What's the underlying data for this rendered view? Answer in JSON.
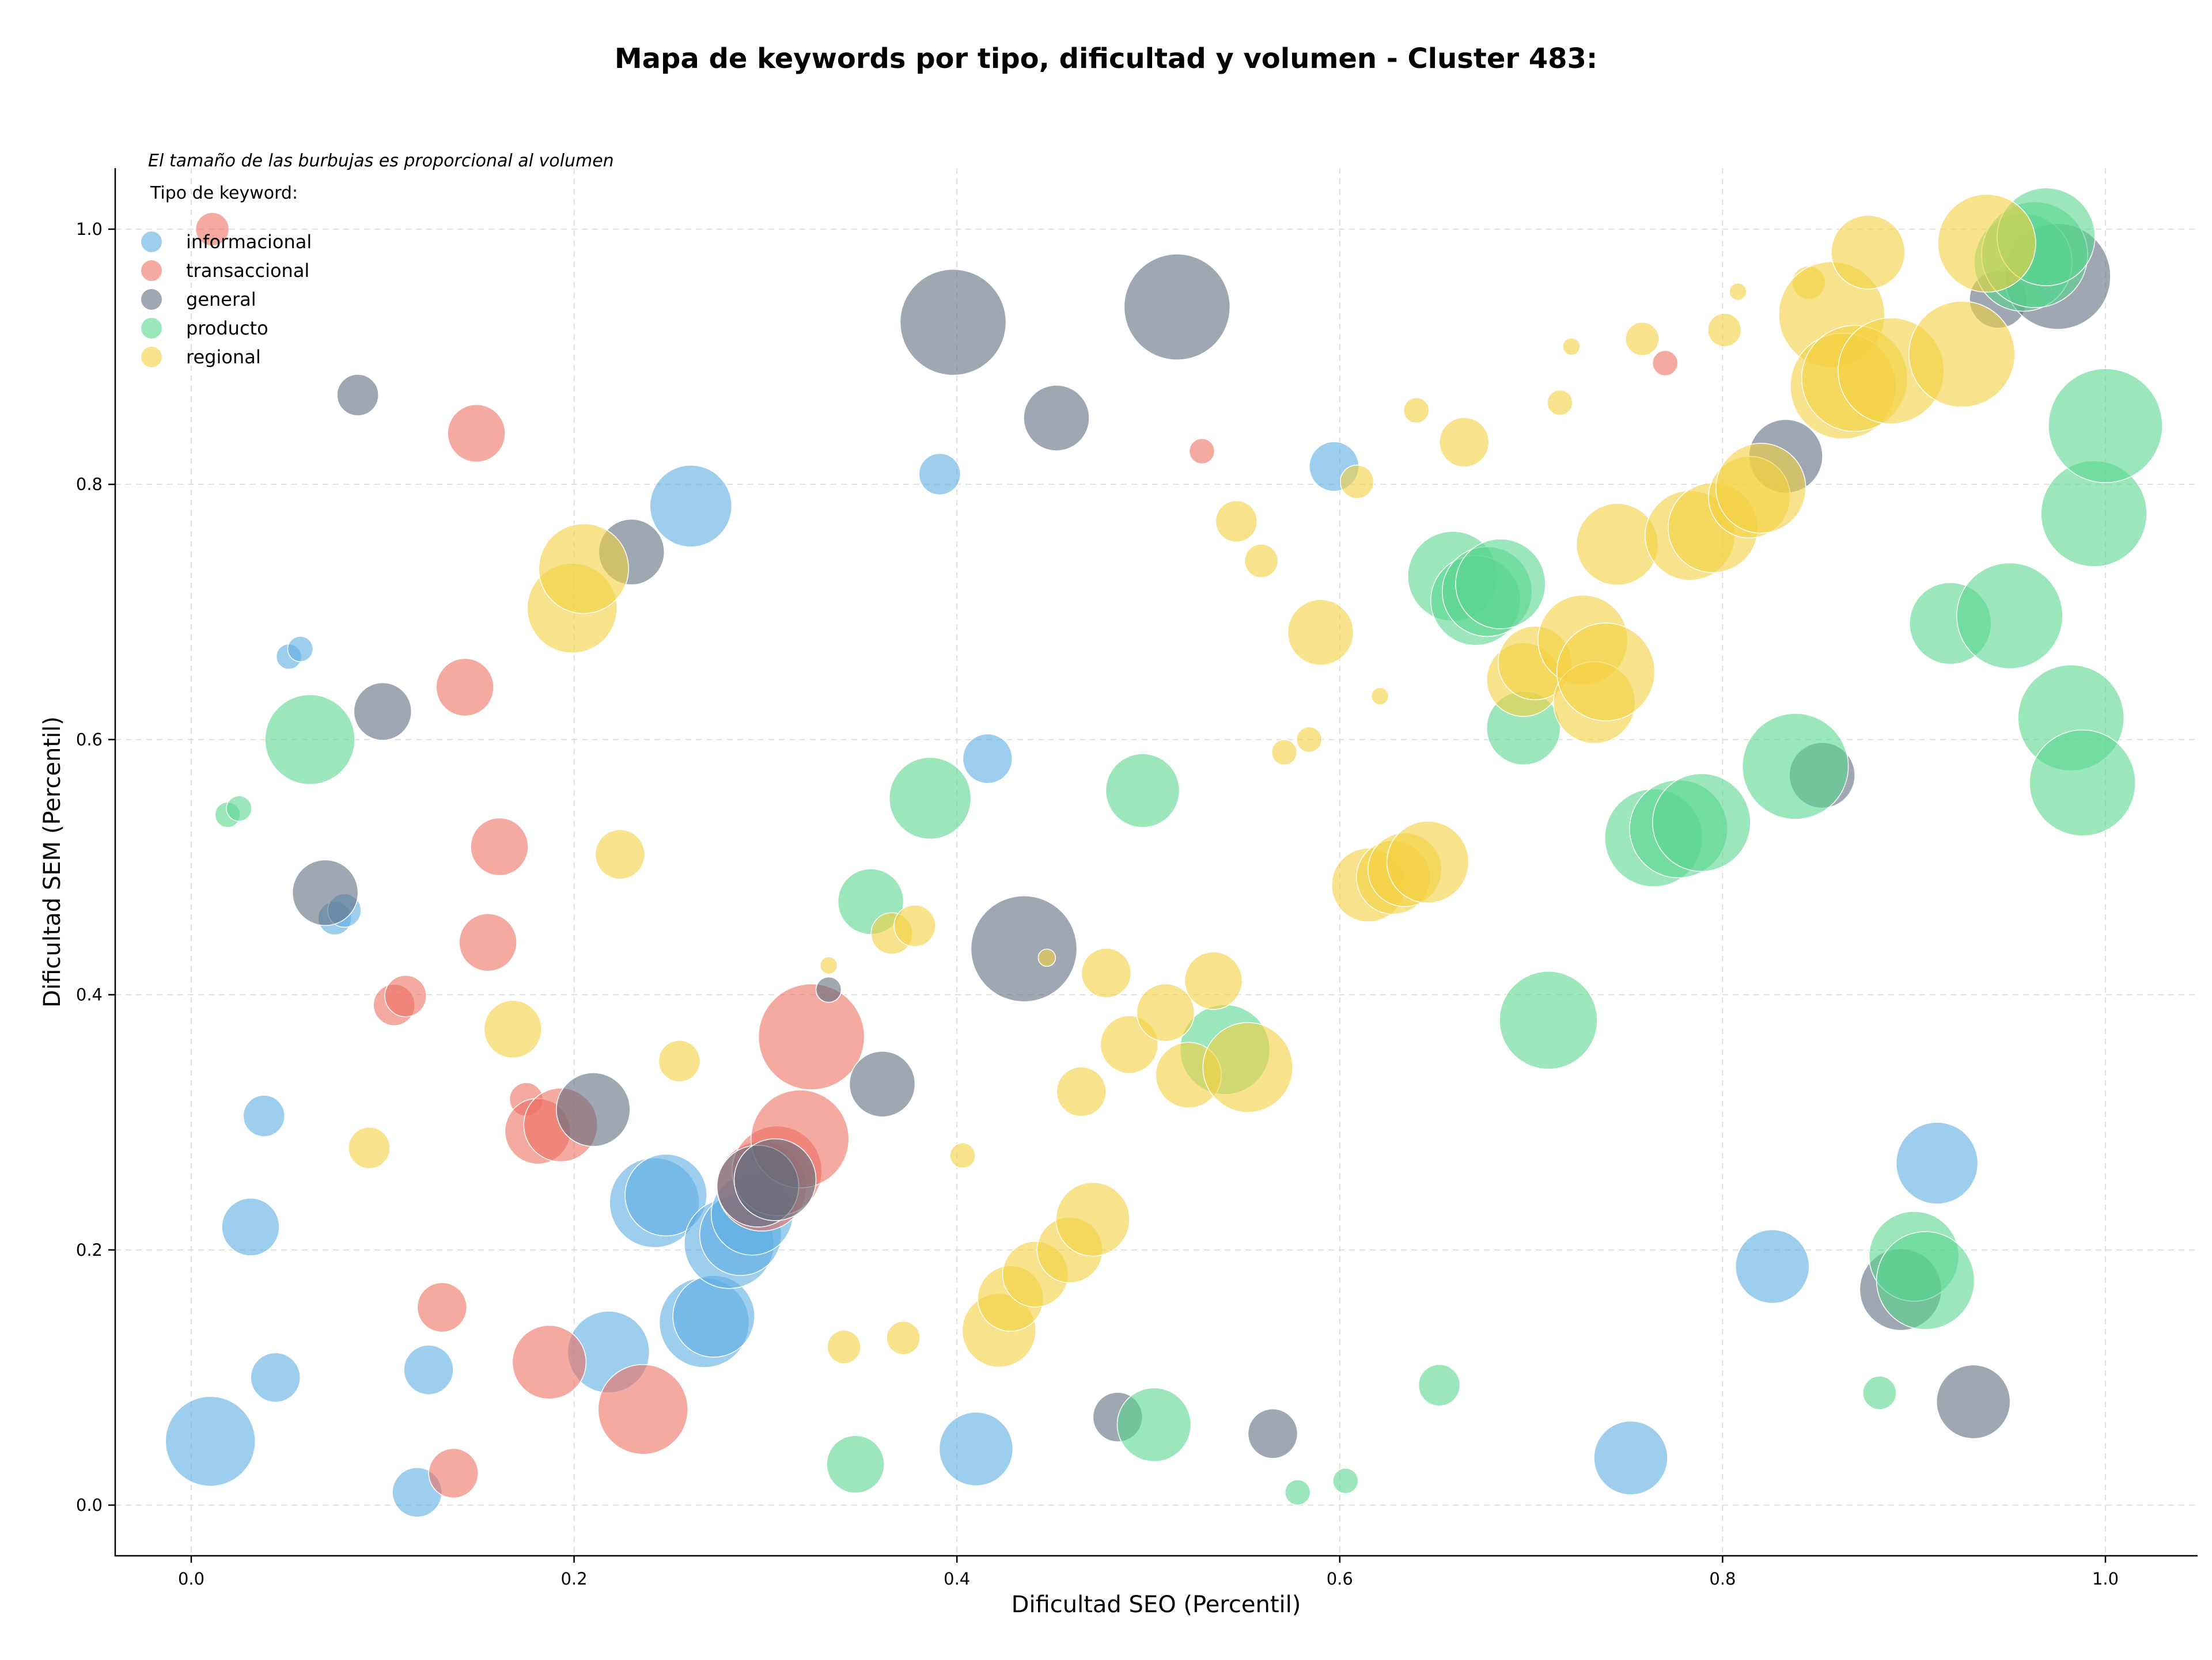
{
  "chart_data": {
    "type": "scatter",
    "title": "Mapa de keywords por tipo, dificultad y volumen - Cluster 483:",
    "xlabel": "Dificultad SEO (Percentil)",
    "ylabel": "Dificultad SEM (Percentil)",
    "xlim": [
      -0.04,
      1.05
    ],
    "ylim": [
      -0.04,
      1.05
    ],
    "xticks": [
      0.0,
      0.2,
      0.4,
      0.6,
      0.8,
      1.0
    ],
    "yticks": [
      0.0,
      0.2,
      0.4,
      0.6,
      0.8,
      1.0
    ],
    "xtick_labels": [
      "0.0",
      "0.2",
      "0.4",
      "0.6",
      "0.8",
      "1.0"
    ],
    "ytick_labels": [
      "0.0",
      "0.2",
      "0.4",
      "0.6",
      "0.8",
      "1.0"
    ],
    "grid": true,
    "annotation": "El tamaño de las burbujas es proporcional al volumen",
    "legend": {
      "title": "Tipo de keyword:",
      "placement": "top-left"
    },
    "series": [
      {
        "name": "informacional",
        "color": "#5dade2",
        "points": [
          [
            0.01,
            0.05,
            10
          ],
          [
            0.031,
            0.218,
            6
          ],
          [
            0.038,
            0.305,
            4
          ],
          [
            0.044,
            0.1,
            5
          ],
          [
            0.051,
            0.665,
            2
          ],
          [
            0.057,
            0.671,
            2
          ],
          [
            0.075,
            0.46,
            3
          ],
          [
            0.08,
            0.466,
            3
          ],
          [
            0.118,
            0.01,
            5
          ],
          [
            0.124,
            0.106,
            5
          ],
          [
            0.218,
            0.12,
            9
          ],
          [
            0.242,
            0.237,
            10
          ],
          [
            0.248,
            0.243,
            9
          ],
          [
            0.261,
            0.783,
            9
          ],
          [
            0.268,
            0.143,
            10
          ],
          [
            0.273,
            0.148,
            9
          ],
          [
            0.281,
            0.205,
            10
          ],
          [
            0.287,
            0.212,
            9
          ],
          [
            0.293,
            0.228,
            9
          ],
          [
            0.391,
            0.808,
            4
          ],
          [
            0.416,
            0.585,
            5
          ],
          [
            0.41,
            0.044,
            8
          ],
          [
            0.597,
            0.814,
            5
          ],
          [
            0.752,
            0.037,
            8
          ],
          [
            0.826,
            0.187,
            8
          ],
          [
            0.912,
            0.268,
            9
          ]
        ]
      },
      {
        "name": "transaccional",
        "color": "#ec7063",
        "points": [
          [
            0.011,
            1.0,
            3
          ],
          [
            0.106,
            0.392,
            4
          ],
          [
            0.112,
            0.399,
            4
          ],
          [
            0.131,
            0.155,
            5
          ],
          [
            0.137,
            0.025,
            5
          ],
          [
            0.143,
            0.641,
            6
          ],
          [
            0.149,
            0.84,
            6
          ],
          [
            0.155,
            0.441,
            6
          ],
          [
            0.161,
            0.516,
            6
          ],
          [
            0.175,
            0.318,
            3
          ],
          [
            0.181,
            0.293,
            7
          ],
          [
            0.193,
            0.298,
            8
          ],
          [
            0.187,
            0.112,
            8
          ],
          [
            0.236,
            0.075,
            10
          ],
          [
            0.298,
            0.25,
            10
          ],
          [
            0.306,
            0.262,
            10
          ],
          [
            0.318,
            0.287,
            11
          ],
          [
            0.324,
            0.367,
            12
          ],
          [
            0.528,
            0.826,
            2
          ],
          [
            0.77,
            0.895,
            2
          ]
        ]
      },
      {
        "name": "general",
        "color": "#5d6d7e",
        "points": [
          [
            0.087,
            0.87,
            4
          ],
          [
            0.07,
            0.48,
            7
          ],
          [
            0.1,
            0.622,
            6
          ],
          [
            0.21,
            0.31,
            8
          ],
          [
            0.23,
            0.747,
            7
          ],
          [
            0.296,
            0.25,
            9
          ],
          [
            0.305,
            0.255,
            9
          ],
          [
            0.333,
            0.404,
            2
          ],
          [
            0.361,
            0.33,
            7
          ],
          [
            0.398,
            0.927,
            12
          ],
          [
            0.435,
            0.436,
            12
          ],
          [
            0.452,
            0.852,
            7
          ],
          [
            0.484,
            0.069,
            5
          ],
          [
            0.515,
            0.939,
            12
          ],
          [
            0.565,
            0.056,
            5
          ],
          [
            0.833,
            0.822,
            8
          ],
          [
            0.852,
            0.572,
            7
          ],
          [
            0.893,
            0.169,
            9
          ],
          [
            0.931,
            0.081,
            8
          ],
          [
            0.944,
            0.945,
            6
          ],
          [
            0.975,
            0.963,
            12
          ]
        ]
      },
      {
        "name": "producto",
        "color": "#58d68d",
        "points": [
          [
            0.019,
            0.541,
            2
          ],
          [
            0.025,
            0.546,
            2
          ],
          [
            0.062,
            0.6,
            10
          ],
          [
            0.347,
            0.032,
            6
          ],
          [
            0.355,
            0.473,
            7
          ],
          [
            0.386,
            0.554,
            9
          ],
          [
            0.497,
            0.56,
            8
          ],
          [
            0.503,
            0.063,
            8
          ],
          [
            0.54,
            0.357,
            10
          ],
          [
            0.578,
            0.01,
            2
          ],
          [
            0.603,
            0.019,
            2
          ],
          [
            0.652,
            0.094,
            4
          ],
          [
            0.659,
            0.728,
            10
          ],
          [
            0.671,
            0.709,
            10
          ],
          [
            0.677,
            0.716,
            10
          ],
          [
            0.684,
            0.722,
            10
          ],
          [
            0.696,
            0.609,
            8
          ],
          [
            0.709,
            0.38,
            11
          ],
          [
            0.764,
            0.523,
            11
          ],
          [
            0.777,
            0.53,
            11
          ],
          [
            0.789,
            0.535,
            11
          ],
          [
            0.838,
            0.579,
            12
          ],
          [
            0.882,
            0.088,
            3
          ],
          [
            0.9,
            0.195,
            10
          ],
          [
            0.906,
            0.176,
            11
          ],
          [
            0.919,
            0.691,
            9
          ],
          [
            0.95,
            0.697,
            12
          ],
          [
            0.957,
            0.974,
            11
          ],
          [
            0.963,
            0.98,
            12
          ],
          [
            0.969,
            0.994,
            11
          ],
          [
            0.982,
            0.617,
            12
          ],
          [
            0.988,
            0.566,
            12
          ],
          [
            0.994,
            0.777,
            12
          ],
          [
            1.0,
            0.846,
            13
          ]
        ]
      },
      {
        "name": "regional",
        "color": "#f4d03f",
        "points": [
          [
            0.093,
            0.28,
            4
          ],
          [
            0.168,
            0.373,
            6
          ],
          [
            0.199,
            0.703,
            10
          ],
          [
            0.205,
            0.734,
            10
          ],
          [
            0.224,
            0.51,
            5
          ],
          [
            0.255,
            0.348,
            4
          ],
          [
            0.333,
            0.423,
            1
          ],
          [
            0.341,
            0.124,
            3
          ],
          [
            0.366,
            0.448,
            4
          ],
          [
            0.372,
            0.131,
            3
          ],
          [
            0.378,
            0.454,
            4
          ],
          [
            0.403,
            0.274,
            2
          ],
          [
            0.422,
            0.137,
            8
          ],
          [
            0.428,
            0.162,
            7
          ],
          [
            0.441,
            0.181,
            7
          ],
          [
            0.447,
            0.429,
            1
          ],
          [
            0.459,
            0.2,
            7
          ],
          [
            0.465,
            0.324,
            5
          ],
          [
            0.471,
            0.224,
            8
          ],
          [
            0.478,
            0.417,
            5
          ],
          [
            0.49,
            0.361,
            6
          ],
          [
            0.509,
            0.386,
            6
          ],
          [
            0.521,
            0.337,
            7
          ],
          [
            0.534,
            0.411,
            6
          ],
          [
            0.546,
            0.771,
            4
          ],
          [
            0.552,
            0.343,
            10
          ],
          [
            0.559,
            0.74,
            3
          ],
          [
            0.571,
            0.59,
            2
          ],
          [
            0.584,
            0.6,
            2
          ],
          [
            0.59,
            0.684,
            7
          ],
          [
            0.609,
            0.802,
            3
          ],
          [
            0.615,
            0.486,
            8
          ],
          [
            0.621,
            0.634,
            1
          ],
          [
            0.628,
            0.492,
            8
          ],
          [
            0.634,
            0.498,
            8
          ],
          [
            0.64,
            0.858,
            2
          ],
          [
            0.646,
            0.504,
            9
          ],
          [
            0.665,
            0.833,
            5
          ],
          [
            0.696,
            0.647,
            8
          ],
          [
            0.702,
            0.66,
            8
          ],
          [
            0.715,
            0.864,
            2
          ],
          [
            0.721,
            0.908,
            1
          ],
          [
            0.727,
            0.678,
            10
          ],
          [
            0.733,
            0.629,
            9
          ],
          [
            0.739,
            0.653,
            11
          ],
          [
            0.745,
            0.753,
            9
          ],
          [
            0.758,
            0.914,
            3
          ],
          [
            0.783,
            0.76,
            10
          ],
          [
            0.795,
            0.766,
            10
          ],
          [
            0.801,
            0.921,
            3
          ],
          [
            0.808,
            0.951,
            1
          ],
          [
            0.814,
            0.79,
            9
          ],
          [
            0.82,
            0.797,
            10
          ],
          [
            0.845,
            0.958,
            3
          ],
          [
            0.857,
            0.933,
            12
          ],
          [
            0.863,
            0.877,
            12
          ],
          [
            0.869,
            0.883,
            12
          ],
          [
            0.876,
            0.982,
            8
          ],
          [
            0.888,
            0.889,
            12
          ],
          [
            0.925,
            0.902,
            12
          ],
          [
            0.938,
            0.989,
            11
          ]
        ]
      }
    ]
  }
}
